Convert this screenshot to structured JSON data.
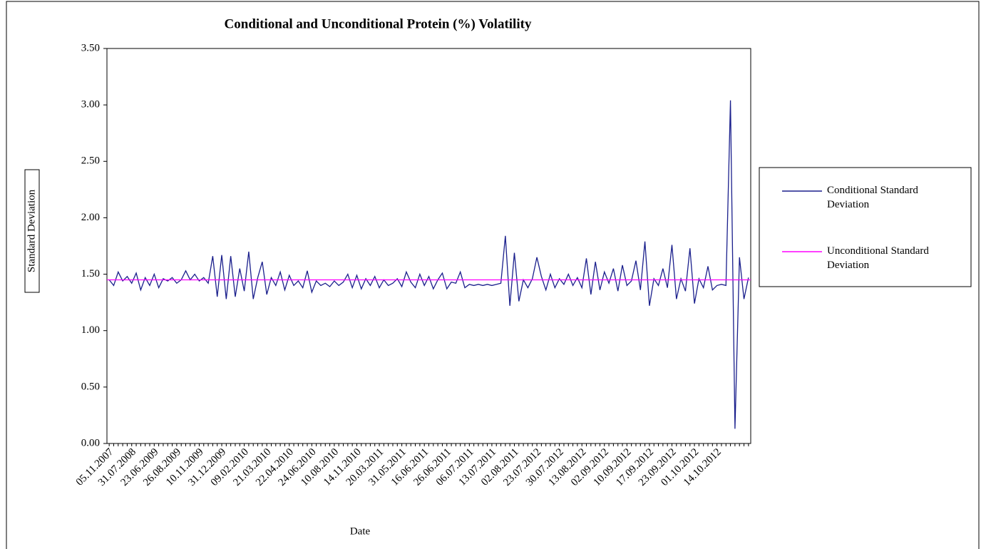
{
  "chart_data": {
    "type": "line",
    "title": "Conditional and Unconditional Protein (%) Volatility",
    "x_label": "Date",
    "y_label": "Standard Deviation",
    "categories": [
      "05.11.2007",
      null,
      null,
      null,
      null,
      "31.07.2008",
      null,
      null,
      null,
      null,
      "23.06.2009",
      null,
      null,
      null,
      null,
      "26.08.2009",
      null,
      null,
      null,
      null,
      "10.11.2009",
      null,
      null,
      null,
      null,
      "31.12.2009",
      null,
      null,
      null,
      null,
      "09.02.2010",
      null,
      null,
      null,
      null,
      "21.03.2010",
      null,
      null,
      null,
      null,
      "22.04.2010",
      null,
      null,
      null,
      null,
      "24.06.2010",
      null,
      null,
      null,
      null,
      "10.08.2010",
      null,
      null,
      null,
      null,
      "14.11.2010",
      null,
      null,
      null,
      null,
      "20.03.2011",
      null,
      null,
      null,
      null,
      "31.05.2011",
      null,
      null,
      null,
      null,
      "16.06.2011",
      null,
      null,
      null,
      null,
      "26.06.2011",
      null,
      null,
      null,
      null,
      "06.07.2011",
      null,
      null,
      null,
      null,
      "13.07.2011",
      null,
      null,
      null,
      null,
      "02.08.2011",
      null,
      null,
      null,
      null,
      "23.07.2012",
      null,
      null,
      null,
      null,
      "30.07.2012",
      null,
      null,
      null,
      null,
      "13.08.2012",
      null,
      null,
      null,
      null,
      "02.09.2012",
      null,
      null,
      null,
      null,
      "10.09.2012",
      null,
      null,
      null,
      null,
      "17.09.2012",
      null,
      null,
      null,
      null,
      "23.09.2012",
      null,
      null,
      null,
      null,
      "01.10.2012",
      null,
      null,
      null,
      null,
      "14.10.2012",
      null,
      null,
      null,
      null,
      null,
      null,
      null
    ],
    "series": [
      {
        "name": "Conditional Standard Deviation",
        "color": "#1a1f8c",
        "values": [
          1.45,
          1.4,
          1.52,
          1.44,
          1.48,
          1.42,
          1.51,
          1.36,
          1.47,
          1.4,
          1.5,
          1.38,
          1.46,
          1.44,
          1.47,
          1.42,
          1.45,
          1.53,
          1.45,
          1.5,
          1.44,
          1.47,
          1.42,
          1.66,
          1.3,
          1.67,
          1.28,
          1.66,
          1.3,
          1.55,
          1.35,
          1.7,
          1.28,
          1.47,
          1.61,
          1.32,
          1.47,
          1.4,
          1.52,
          1.36,
          1.49,
          1.4,
          1.44,
          1.38,
          1.53,
          1.34,
          1.44,
          1.4,
          1.42,
          1.39,
          1.44,
          1.4,
          1.43,
          1.5,
          1.38,
          1.49,
          1.37,
          1.46,
          1.4,
          1.48,
          1.38,
          1.45,
          1.4,
          1.42,
          1.46,
          1.39,
          1.52,
          1.43,
          1.38,
          1.5,
          1.4,
          1.48,
          1.37,
          1.45,
          1.51,
          1.37,
          1.43,
          1.42,
          1.52,
          1.38,
          1.41,
          1.4,
          1.41,
          1.4,
          1.41,
          1.4,
          1.41,
          1.42,
          1.84,
          1.22,
          1.69,
          1.26,
          1.45,
          1.38,
          1.46,
          1.65,
          1.48,
          1.36,
          1.5,
          1.38,
          1.46,
          1.41,
          1.5,
          1.4,
          1.47,
          1.38,
          1.64,
          1.32,
          1.61,
          1.36,
          1.52,
          1.42,
          1.55,
          1.35,
          1.58,
          1.4,
          1.44,
          1.62,
          1.36,
          1.79,
          1.22,
          1.46,
          1.4,
          1.55,
          1.38,
          1.76,
          1.28,
          1.46,
          1.35,
          1.73,
          1.24,
          1.46,
          1.38,
          1.57,
          1.36,
          1.4,
          1.41,
          1.4,
          3.04,
          0.13,
          1.65,
          1.28,
          1.47
        ]
      },
      {
        "name": "Unconditional Standard Deviation",
        "color": "#ff00ff",
        "value": 1.45
      }
    ],
    "ylim": [
      0,
      3.5
    ],
    "yticks": [
      {
        "value": 0,
        "label": "0.00"
      },
      {
        "value": 0.5,
        "label": "0.50"
      },
      {
        "value": 1,
        "label": "1.00"
      },
      {
        "value": 1.5,
        "label": "1.50"
      },
      {
        "value": 2,
        "label": "2.00"
      },
      {
        "value": 2.5,
        "label": "2.50"
      },
      {
        "value": 3,
        "label": "3.00"
      },
      {
        "value": 3.5,
        "label": "3.50"
      }
    ],
    "legend": "right"
  }
}
